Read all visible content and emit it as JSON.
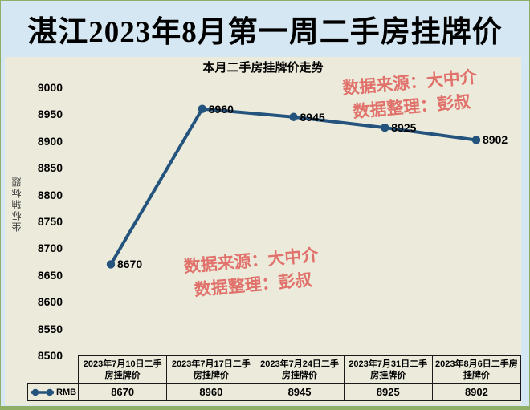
{
  "page": {
    "title": "湛江2023年8月第一周二手房挂牌价"
  },
  "colors": {
    "frame_green": "#8fae66",
    "banner_bg": "#d5e7f2",
    "panel_bg": "#ecebdb",
    "line": "#24537d",
    "watermark": "#e0716b",
    "table_border": "#1a1a1a"
  },
  "watermarks": [
    {
      "line1": "数据来源：大中介",
      "line2": "数据整理：彭叔"
    },
    {
      "line1": "数据来源：大中介",
      "line2": "数据整理：彭叔"
    }
  ],
  "chart_data": {
    "type": "line",
    "title": "本月二手房挂牌价走势",
    "y_axis_title": "坐标轴标题",
    "categories": [
      "2023年7月10日二手房挂牌价",
      "2023年7月17日二手房挂牌价",
      "2023年7月24日二手房挂牌价",
      "2023年7月31日二手房挂牌价",
      "2023年8月6日二手房挂牌价"
    ],
    "series": [
      {
        "name": "RMB",
        "values": [
          8670,
          8960,
          8945,
          8925,
          8902
        ]
      }
    ],
    "ylim": [
      8500,
      9000
    ],
    "y_ticks": [
      9000,
      8950,
      8900,
      8850,
      8800,
      8750,
      8700,
      8650,
      8600,
      8550,
      8500
    ],
    "grid": false,
    "legend_position": "bottom-table-left",
    "data_labels": true
  }
}
